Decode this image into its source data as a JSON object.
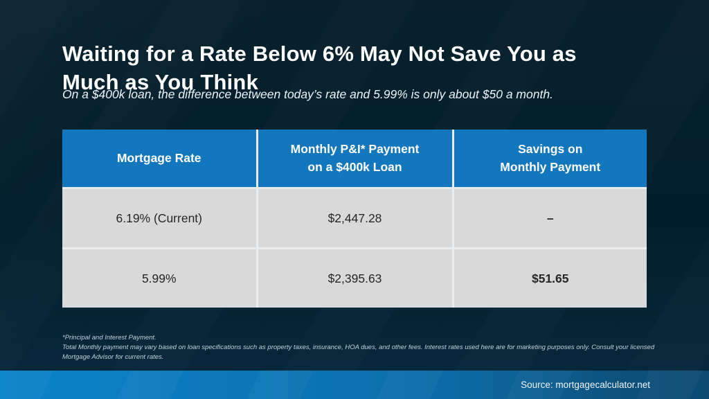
{
  "slide": {
    "title_line1": "Waiting for a Rate Below 6% May Not Save You as",
    "title_line2": "Much as You Think",
    "subtitle": "On a $400k loan, the difference between today’s rate and 5.99% is only about $50 a month.",
    "footnote_line1": "*Principal and Interest Payment.",
    "footnote_line2": "Total Monthly payment may vary based on loan specifications such as property taxes, insurance, HOA dues, and other fees. Interest rates used here are for marketing purposes only. Consult your licensed Mortgage Advisor for current rates.",
    "source": "Source: mortgagecalculator.net"
  },
  "table": {
    "headers": {
      "rate": "Mortgage Rate",
      "payment": "Monthly P&I* Payment\non a $400k Loan",
      "savings": "Savings on\nMonthly Payment"
    },
    "rows": [
      {
        "rate": "6.19% (Current)",
        "payment": "$2,447.28",
        "savings": "–"
      },
      {
        "rate": "5.99%",
        "payment": "$2,395.63",
        "savings": "$51.65"
      }
    ]
  },
  "colors": {
    "header_blue": "#1377bd",
    "cell_gray": "#d9d9d9",
    "background_navy": "#021e2c",
    "bar_blue_left": "#0a82c8",
    "bar_blue_right": "#0c4a72"
  }
}
